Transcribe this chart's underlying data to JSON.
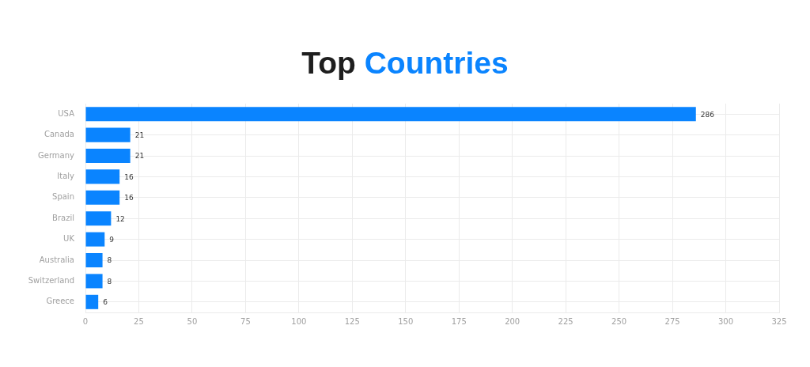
{
  "chart_data": {
    "type": "bar",
    "title": "Top Countries",
    "orientation": "horizontal",
    "categories": [
      "USA",
      "Canada",
      "Germany",
      "Italy",
      "Spain",
      "Brazil",
      "UK",
      "Australia",
      "Switzerland",
      "Greece"
    ],
    "values": [
      286,
      21,
      21,
      16,
      16,
      12,
      9,
      8,
      8,
      6
    ],
    "color": "#0a84ff",
    "xlim": [
      0,
      325
    ],
    "xticks": [
      0,
      25,
      50,
      75,
      100,
      125,
      150,
      175,
      200,
      225,
      250,
      275,
      300,
      325
    ],
    "grid": true,
    "data_labels": true
  }
}
